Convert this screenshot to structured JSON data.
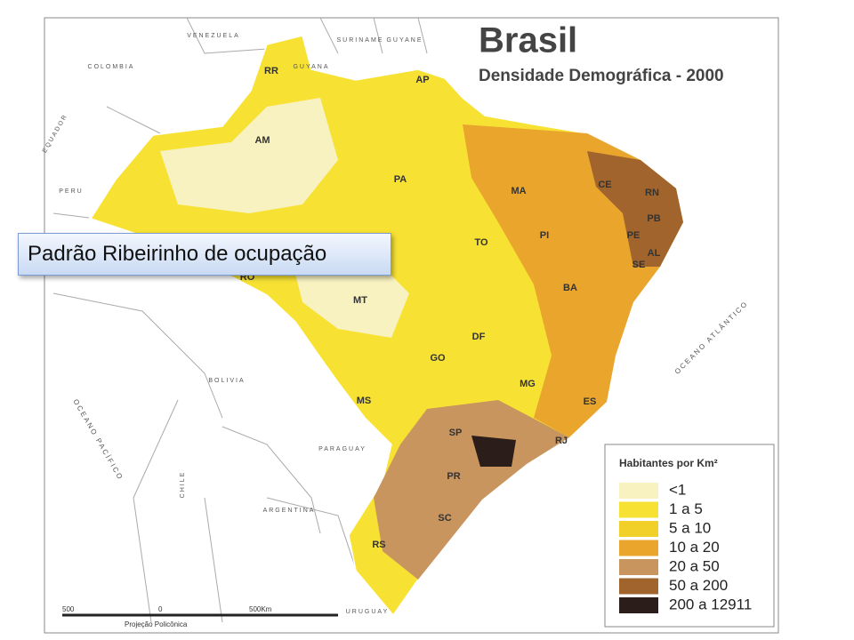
{
  "map": {
    "title": "Brasil",
    "subtitle": "Densidade Demográfica - 2000",
    "legend": {
      "title": "Habitantes por Km²",
      "items": [
        {
          "label": "<1",
          "color": "#f7f2c0"
        },
        {
          "label": "1 a 5",
          "color": "#f7e234"
        },
        {
          "label": "5 a 10",
          "color": "#f2d02a"
        },
        {
          "label": "10 a 20",
          "color": "#eaa52c"
        },
        {
          "label": "20 a 50",
          "color": "#c9955e"
        },
        {
          "label": "50 a 200",
          "color": "#a0642c"
        },
        {
          "label": "200 a 12911",
          "color": "#2a1d1a"
        }
      ]
    },
    "states": [
      "RR",
      "AP",
      "AM",
      "PA",
      "MA",
      "CE",
      "RN",
      "PB",
      "PE",
      "AL",
      "SE",
      "PI",
      "TO",
      "BA",
      "MT",
      "DF",
      "GO",
      "MG",
      "ES",
      "MS",
      "SP",
      "RJ",
      "PR",
      "SC",
      "RS",
      "RO"
    ],
    "countries": [
      "VENEZUELA",
      "COLOMBIA",
      "SURINAME",
      "GUYANE",
      "GUYANA",
      "EQUADOR",
      "PERU",
      "BOLIVIA",
      "PARAGUAY",
      "ARGENTINA",
      "CHILE",
      "URUGUAY"
    ],
    "oceans": [
      "OCEANO ATLÂNTICO",
      "OCEANO PACÍFICO"
    ],
    "scale": {
      "left": "500",
      "zero": "0",
      "right": "500Km",
      "projection": "Projeção Policônica"
    },
    "callout": "Padrão Ribeirinho de ocupação"
  }
}
